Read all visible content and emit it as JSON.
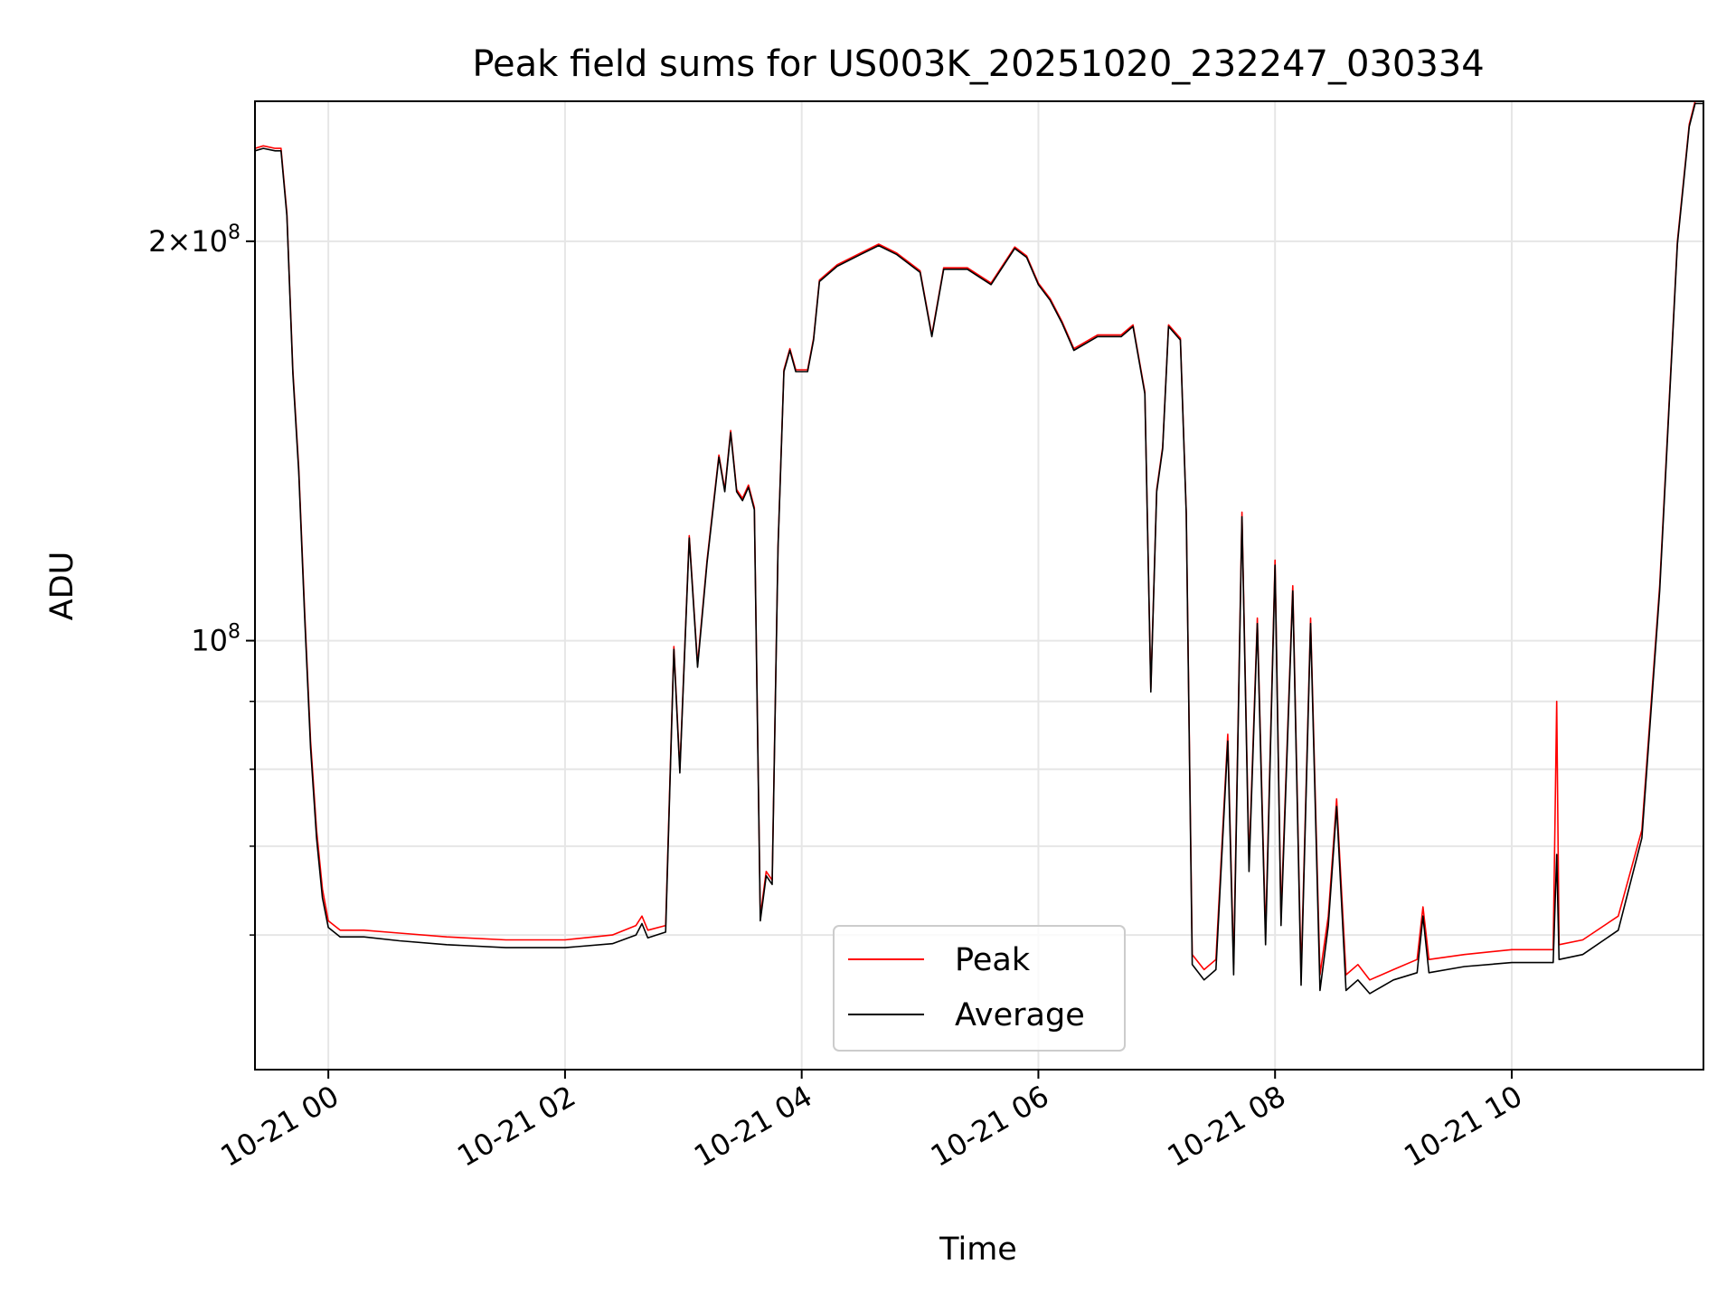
{
  "chart_data": {
    "type": "line",
    "title": "Peak field sums for US003K_20251020_232247_030334",
    "xlabel": "Time",
    "ylabel": "ADU",
    "yscale": "log",
    "ylim": [
      47500000,
      255000000
    ],
    "xlim_hours": [
      -0.62,
      11.62
    ],
    "grid": true,
    "legend_position": "lower center",
    "x_tick_labels": [
      {
        "hour": 0,
        "label": "10-21 00"
      },
      {
        "hour": 2,
        "label": "10-21 02"
      },
      {
        "hour": 4,
        "label": "10-21 04"
      },
      {
        "hour": 6,
        "label": "10-21 06"
      },
      {
        "hour": 8,
        "label": "10-21 08"
      },
      {
        "hour": 10,
        "label": "10-21 10"
      }
    ],
    "y_major_ticks": [
      {
        "value": 100000000,
        "base": "10",
        "exp": "8",
        "mult": ""
      },
      {
        "value": 200000000,
        "base": "10",
        "exp": "8",
        "mult": "2×"
      }
    ],
    "y_minor_ticks": [
      60000000,
      70000000,
      80000000,
      90000000
    ],
    "series": [
      {
        "name": "Peak",
        "color": "#ff0000",
        "points": [
          [
            -0.62,
            235000000
          ],
          [
            -0.55,
            236000000
          ],
          [
            -0.45,
            235000000
          ],
          [
            -0.4,
            235000000
          ],
          [
            -0.35,
            210000000
          ],
          [
            -0.3,
            160000000
          ],
          [
            -0.25,
            135000000
          ],
          [
            -0.2,
            105000000
          ],
          [
            -0.15,
            84000000
          ],
          [
            -0.1,
            72000000
          ],
          [
            -0.05,
            65000000
          ],
          [
            0.0,
            61500000
          ],
          [
            0.1,
            60500000
          ],
          [
            0.3,
            60500000
          ],
          [
            0.6,
            60200000
          ],
          [
            1.0,
            59800000
          ],
          [
            1.5,
            59500000
          ],
          [
            2.0,
            59500000
          ],
          [
            2.4,
            60000000
          ],
          [
            2.6,
            61000000
          ],
          [
            2.65,
            62000000
          ],
          [
            2.7,
            60500000
          ],
          [
            2.85,
            61000000
          ],
          [
            2.92,
            99000000
          ],
          [
            2.97,
            80000000
          ],
          [
            3.05,
            120000000
          ],
          [
            3.12,
            96000000
          ],
          [
            3.2,
            115000000
          ],
          [
            3.3,
            138000000
          ],
          [
            3.35,
            130000000
          ],
          [
            3.4,
            144000000
          ],
          [
            3.45,
            130000000
          ],
          [
            3.5,
            128000000
          ],
          [
            3.55,
            131000000
          ],
          [
            3.6,
            126000000
          ],
          [
            3.65,
            62000000
          ],
          [
            3.7,
            67000000
          ],
          [
            3.75,
            66000000
          ],
          [
            3.8,
            118000000
          ],
          [
            3.85,
            160000000
          ],
          [
            3.9,
            166000000
          ],
          [
            3.95,
            160000000
          ],
          [
            4.05,
            160000000
          ],
          [
            4.1,
            169000000
          ],
          [
            4.15,
            187000000
          ],
          [
            4.3,
            192000000
          ],
          [
            4.5,
            196000000
          ],
          [
            4.65,
            199000000
          ],
          [
            4.8,
            196000000
          ],
          [
            5.0,
            190000000
          ],
          [
            5.1,
            170000000
          ],
          [
            5.2,
            191000000
          ],
          [
            5.4,
            191000000
          ],
          [
            5.6,
            186000000
          ],
          [
            5.8,
            198000000
          ],
          [
            5.9,
            195000000
          ],
          [
            6.0,
            186000000
          ],
          [
            6.1,
            181000000
          ],
          [
            6.2,
            174000000
          ],
          [
            6.3,
            166000000
          ],
          [
            6.5,
            170000000
          ],
          [
            6.7,
            170000000
          ],
          [
            6.8,
            173000000
          ],
          [
            6.9,
            154000000
          ],
          [
            6.95,
            92000000
          ],
          [
            7.0,
            130000000
          ],
          [
            7.05,
            140000000
          ],
          [
            7.1,
            173000000
          ],
          [
            7.2,
            169000000
          ],
          [
            7.25,
            125000000
          ],
          [
            7.3,
            58000000
          ],
          [
            7.4,
            56500000
          ],
          [
            7.5,
            57500000
          ],
          [
            7.6,
            85000000
          ],
          [
            7.65,
            57000000
          ],
          [
            7.72,
            125000000
          ],
          [
            7.78,
            68000000
          ],
          [
            7.85,
            104000000
          ],
          [
            7.92,
            60000000
          ],
          [
            8.0,
            115000000
          ],
          [
            8.05,
            62000000
          ],
          [
            8.15,
            110000000
          ],
          [
            8.22,
            56000000
          ],
          [
            8.3,
            104000000
          ],
          [
            8.38,
            56000000
          ],
          [
            8.45,
            62000000
          ],
          [
            8.52,
            76000000
          ],
          [
            8.6,
            56000000
          ],
          [
            8.7,
            57000000
          ],
          [
            8.8,
            55500000
          ],
          [
            9.0,
            56500000
          ],
          [
            9.2,
            57500000
          ],
          [
            9.25,
            63000000
          ],
          [
            9.3,
            57500000
          ],
          [
            9.6,
            58000000
          ],
          [
            10.0,
            58500000
          ],
          [
            10.35,
            58500000
          ],
          [
            10.38,
            90000000
          ],
          [
            10.4,
            59000000
          ],
          [
            10.6,
            59500000
          ],
          [
            10.9,
            62000000
          ],
          [
            11.1,
            72000000
          ],
          [
            11.25,
            110000000
          ],
          [
            11.4,
            200000000
          ],
          [
            11.5,
            245000000
          ],
          [
            11.55,
            255000000
          ],
          [
            11.62,
            255000000
          ]
        ]
      },
      {
        "name": "Average",
        "color": "#000000",
        "points": [
          [
            -0.62,
            234000000
          ],
          [
            -0.55,
            235000000
          ],
          [
            -0.45,
            234000000
          ],
          [
            -0.4,
            234000000
          ],
          [
            -0.35,
            209000000
          ],
          [
            -0.3,
            159000000
          ],
          [
            -0.25,
            134000000
          ],
          [
            -0.2,
            104000000
          ],
          [
            -0.15,
            83000000
          ],
          [
            -0.1,
            71000000
          ],
          [
            -0.05,
            64000000
          ],
          [
            0.0,
            60800000
          ],
          [
            0.1,
            59800000
          ],
          [
            0.3,
            59800000
          ],
          [
            0.6,
            59400000
          ],
          [
            1.0,
            59000000
          ],
          [
            1.5,
            58700000
          ],
          [
            2.0,
            58700000
          ],
          [
            2.4,
            59100000
          ],
          [
            2.6,
            60000000
          ],
          [
            2.65,
            61200000
          ],
          [
            2.7,
            59700000
          ],
          [
            2.85,
            60300000
          ],
          [
            2.92,
            98500000
          ],
          [
            2.97,
            79500000
          ],
          [
            3.05,
            119500000
          ],
          [
            3.12,
            95500000
          ],
          [
            3.2,
            114500000
          ],
          [
            3.3,
            137500000
          ],
          [
            3.35,
            129500000
          ],
          [
            3.4,
            143500000
          ],
          [
            3.45,
            129500000
          ],
          [
            3.5,
            127500000
          ],
          [
            3.55,
            130500000
          ],
          [
            3.6,
            125500000
          ],
          [
            3.65,
            61500000
          ],
          [
            3.7,
            66500000
          ],
          [
            3.75,
            65500000
          ],
          [
            3.8,
            117500000
          ],
          [
            3.85,
            159500000
          ],
          [
            3.9,
            165500000
          ],
          [
            3.95,
            159500000
          ],
          [
            4.05,
            159500000
          ],
          [
            4.1,
            168500000
          ],
          [
            4.15,
            186500000
          ],
          [
            4.3,
            191500000
          ],
          [
            4.5,
            195500000
          ],
          [
            4.65,
            198500000
          ],
          [
            4.8,
            195500000
          ],
          [
            5.0,
            189500000
          ],
          [
            5.1,
            169500000
          ],
          [
            5.2,
            190500000
          ],
          [
            5.4,
            190500000
          ],
          [
            5.6,
            185500000
          ],
          [
            5.8,
            197500000
          ],
          [
            5.9,
            194500000
          ],
          [
            6.0,
            185500000
          ],
          [
            6.1,
            180500000
          ],
          [
            6.2,
            173500000
          ],
          [
            6.3,
            165500000
          ],
          [
            6.5,
            169500000
          ],
          [
            6.7,
            169500000
          ],
          [
            6.8,
            172500000
          ],
          [
            6.9,
            153500000
          ],
          [
            6.95,
            91500000
          ],
          [
            7.0,
            129500000
          ],
          [
            7.05,
            139500000
          ],
          [
            7.1,
            172500000
          ],
          [
            7.2,
            168500000
          ],
          [
            7.25,
            124500000
          ],
          [
            7.3,
            57000000
          ],
          [
            7.4,
            55500000
          ],
          [
            7.5,
            56500000
          ],
          [
            7.6,
            84000000
          ],
          [
            7.65,
            56000000
          ],
          [
            7.72,
            124000000
          ],
          [
            7.78,
            67000000
          ],
          [
            7.85,
            103000000
          ],
          [
            7.92,
            59000000
          ],
          [
            8.0,
            114000000
          ],
          [
            8.05,
            61000000
          ],
          [
            8.15,
            109000000
          ],
          [
            8.22,
            55000000
          ],
          [
            8.3,
            103000000
          ],
          [
            8.38,
            54500000
          ],
          [
            8.45,
            61000000
          ],
          [
            8.52,
            75000000
          ],
          [
            8.6,
            54500000
          ],
          [
            8.7,
            55500000
          ],
          [
            8.8,
            54200000
          ],
          [
            9.0,
            55500000
          ],
          [
            9.2,
            56200000
          ],
          [
            9.25,
            62000000
          ],
          [
            9.3,
            56200000
          ],
          [
            9.6,
            56800000
          ],
          [
            10.0,
            57200000
          ],
          [
            10.35,
            57200000
          ],
          [
            10.38,
            69000000
          ],
          [
            10.4,
            57500000
          ],
          [
            10.6,
            58000000
          ],
          [
            10.9,
            60500000
          ],
          [
            11.1,
            71000000
          ],
          [
            11.25,
            109000000
          ],
          [
            11.4,
            199000000
          ],
          [
            11.5,
            244000000
          ],
          [
            11.55,
            254000000
          ],
          [
            11.62,
            254000000
          ]
        ]
      }
    ]
  }
}
